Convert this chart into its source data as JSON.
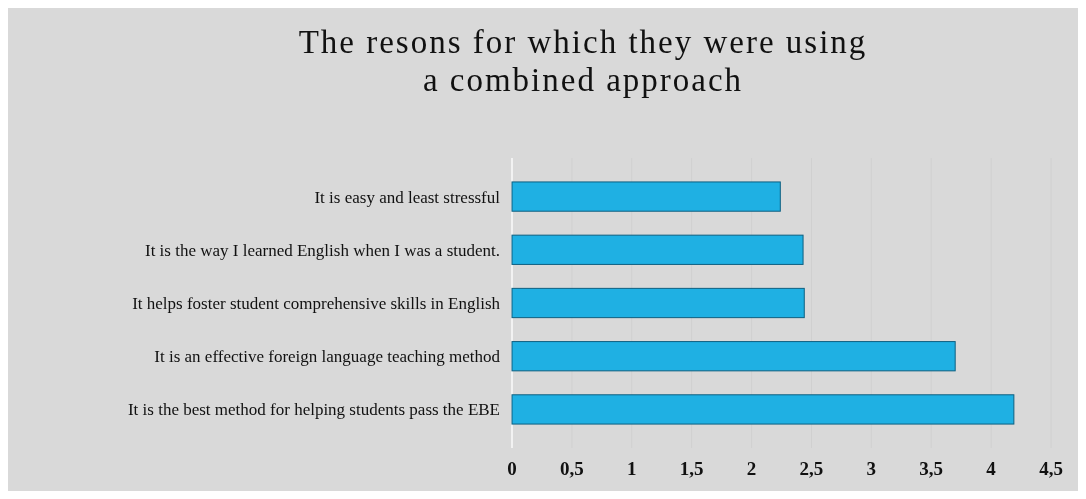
{
  "chart_data": {
    "type": "bar",
    "orientation": "horizontal",
    "title": "The resons for which they were using a combined approach",
    "categories": [
      "It is easy and least stressful",
      "It is the way I learned English when I was a student.",
      "It helps foster student comprehensive skills in English",
      "It is an effective foreign language teaching method",
      "It is the best method for helping students pass the EBE"
    ],
    "values": [
      2.24,
      2.43,
      2.44,
      3.7,
      4.19
    ],
    "color": "#1fb0e3",
    "xlim": [
      0,
      4.5
    ],
    "xticks": [
      0,
      {
        "value": 0.5,
        "label": "0,5"
      },
      1,
      {
        "value": 1.5,
        "label": "1,5"
      },
      2,
      {
        "value": 2.5,
        "label": "2,5"
      },
      3,
      {
        "value": 3.5,
        "label": "3,5"
      },
      4,
      {
        "value": 4.5,
        "label": "4,5"
      }
    ],
    "grid": "x"
  }
}
